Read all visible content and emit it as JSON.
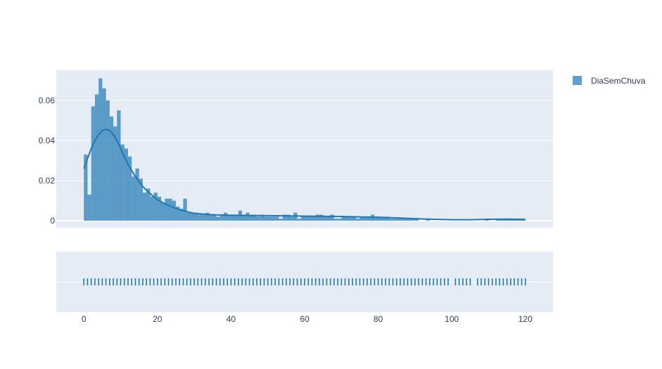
{
  "chart_data": {
    "type": "histogram",
    "series": [
      {
        "name": "DiaSemChuva",
        "color": "#1f77b4",
        "bar_opacity": 0.7
      }
    ],
    "histogram": {
      "bin_width": 1,
      "x_start": 0,
      "density": [
        0.033,
        0.013,
        0.057,
        0.063,
        0.071,
        0.066,
        0.06,
        0.052,
        0.047,
        0.055,
        0.038,
        0.036,
        0.032,
        0.022,
        0.026,
        0.021,
        0.014,
        0.016,
        0.012,
        0.014,
        0.012,
        0.009,
        0.011,
        0.011,
        0.01,
        0.007,
        0.006,
        0.011,
        0.004,
        0.004,
        0.004,
        0.003,
        0.003,
        0.004,
        0.003,
        0.003,
        0.002,
        0.003,
        0.004,
        0.003,
        0.003,
        0.003,
        0.005,
        0.003,
        0.004,
        0.003,
        0.003,
        0.002,
        0.003,
        0.002,
        0.002,
        0.002,
        0.002,
        0.001,
        0.003,
        0.003,
        0.002,
        0.004,
        0.001,
        0.002,
        0.002,
        0.002,
        0.002,
        0.003,
        0.003,
        0.002,
        0.002,
        0.003,
        0.001,
        0.001,
        0.002,
        0.002,
        0.002,
        0.002,
        0.001,
        0.002,
        0.002,
        0.002,
        0.003,
        0.002,
        0.002,
        0.002,
        0.002,
        0.001,
        0.001,
        0.001,
        0.001,
        0.001,
        0.001,
        0.001,
        0.001,
        0.0,
        0.0,
        0.001,
        0.0,
        0.0,
        0.0,
        0.0,
        0.0,
        0.0,
        0.0,
        0.0,
        0.0,
        0.0,
        0.0,
        0.0,
        0.0,
        0.0,
        0.0,
        0.001,
        0.0,
        0.0,
        0.001,
        0.001,
        0.001,
        0.001,
        0.001,
        0.001,
        0.001,
        0.001
      ]
    },
    "kde": {
      "x": [
        0,
        1,
        2,
        3,
        4,
        5,
        6,
        7,
        8,
        9,
        10,
        11,
        12,
        13,
        14,
        16,
        18,
        20,
        22,
        24,
        26,
        28,
        30,
        33,
        36,
        40,
        45,
        50,
        55,
        60,
        65,
        70,
        75,
        80,
        85,
        90,
        95,
        100,
        105,
        110,
        115,
        120
      ],
      "y": [
        0.026,
        0.031,
        0.036,
        0.04,
        0.043,
        0.045,
        0.0455,
        0.045,
        0.043,
        0.04,
        0.036,
        0.032,
        0.028,
        0.025,
        0.022,
        0.017,
        0.0135,
        0.0105,
        0.0085,
        0.0068,
        0.0055,
        0.0045,
        0.0037,
        0.0032,
        0.0029,
        0.0027,
        0.0026,
        0.0025,
        0.0024,
        0.0023,
        0.0022,
        0.0021,
        0.0019,
        0.0017,
        0.0014,
        0.001,
        0.0007,
        0.0005,
        0.0005,
        0.0007,
        0.0008,
        0.0006
      ]
    },
    "rug": {
      "x": [
        0,
        1,
        2,
        3,
        4,
        5,
        6,
        7,
        8,
        9,
        10,
        11,
        12,
        13,
        14,
        15,
        16,
        17,
        18,
        19,
        20,
        21,
        22,
        23,
        24,
        25,
        26,
        27,
        28,
        29,
        30,
        31,
        32,
        33,
        34,
        35,
        36,
        37,
        38,
        39,
        40,
        41,
        42,
        43,
        44,
        45,
        46,
        47,
        48,
        49,
        50,
        51,
        52,
        53,
        54,
        55,
        56,
        57,
        58,
        59,
        60,
        61,
        62,
        63,
        64,
        65,
        66,
        67,
        68,
        69,
        70,
        71,
        72,
        73,
        74,
        75,
        76,
        77,
        78,
        79,
        80,
        81,
        82,
        83,
        84,
        85,
        86,
        87,
        88,
        89,
        90,
        91,
        92,
        93,
        94,
        95,
        96,
        97,
        98,
        99,
        101,
        102,
        103,
        104,
        105,
        107,
        108,
        109,
        110,
        111,
        112,
        113,
        114,
        115,
        116,
        117,
        118,
        119,
        120
      ]
    },
    "xaxis": {
      "range": [
        -7.5,
        127.5
      ],
      "ticks": [
        0,
        20,
        40,
        60,
        80,
        100,
        120
      ],
      "tick_labels": [
        "0",
        "20",
        "40",
        "60",
        "80",
        "100",
        "120"
      ]
    },
    "yaxis": {
      "range": [
        -0.0035,
        0.075
      ],
      "ticks": [
        0,
        0.02,
        0.04,
        0.06
      ],
      "tick_labels": [
        "0",
        "0.02",
        "0.04",
        "0.06"
      ]
    },
    "grid": true,
    "legend": {
      "placement": "top-right",
      "entries": [
        "DiaSemChuva"
      ]
    },
    "title": "",
    "xlabel": "",
    "ylabel": ""
  }
}
